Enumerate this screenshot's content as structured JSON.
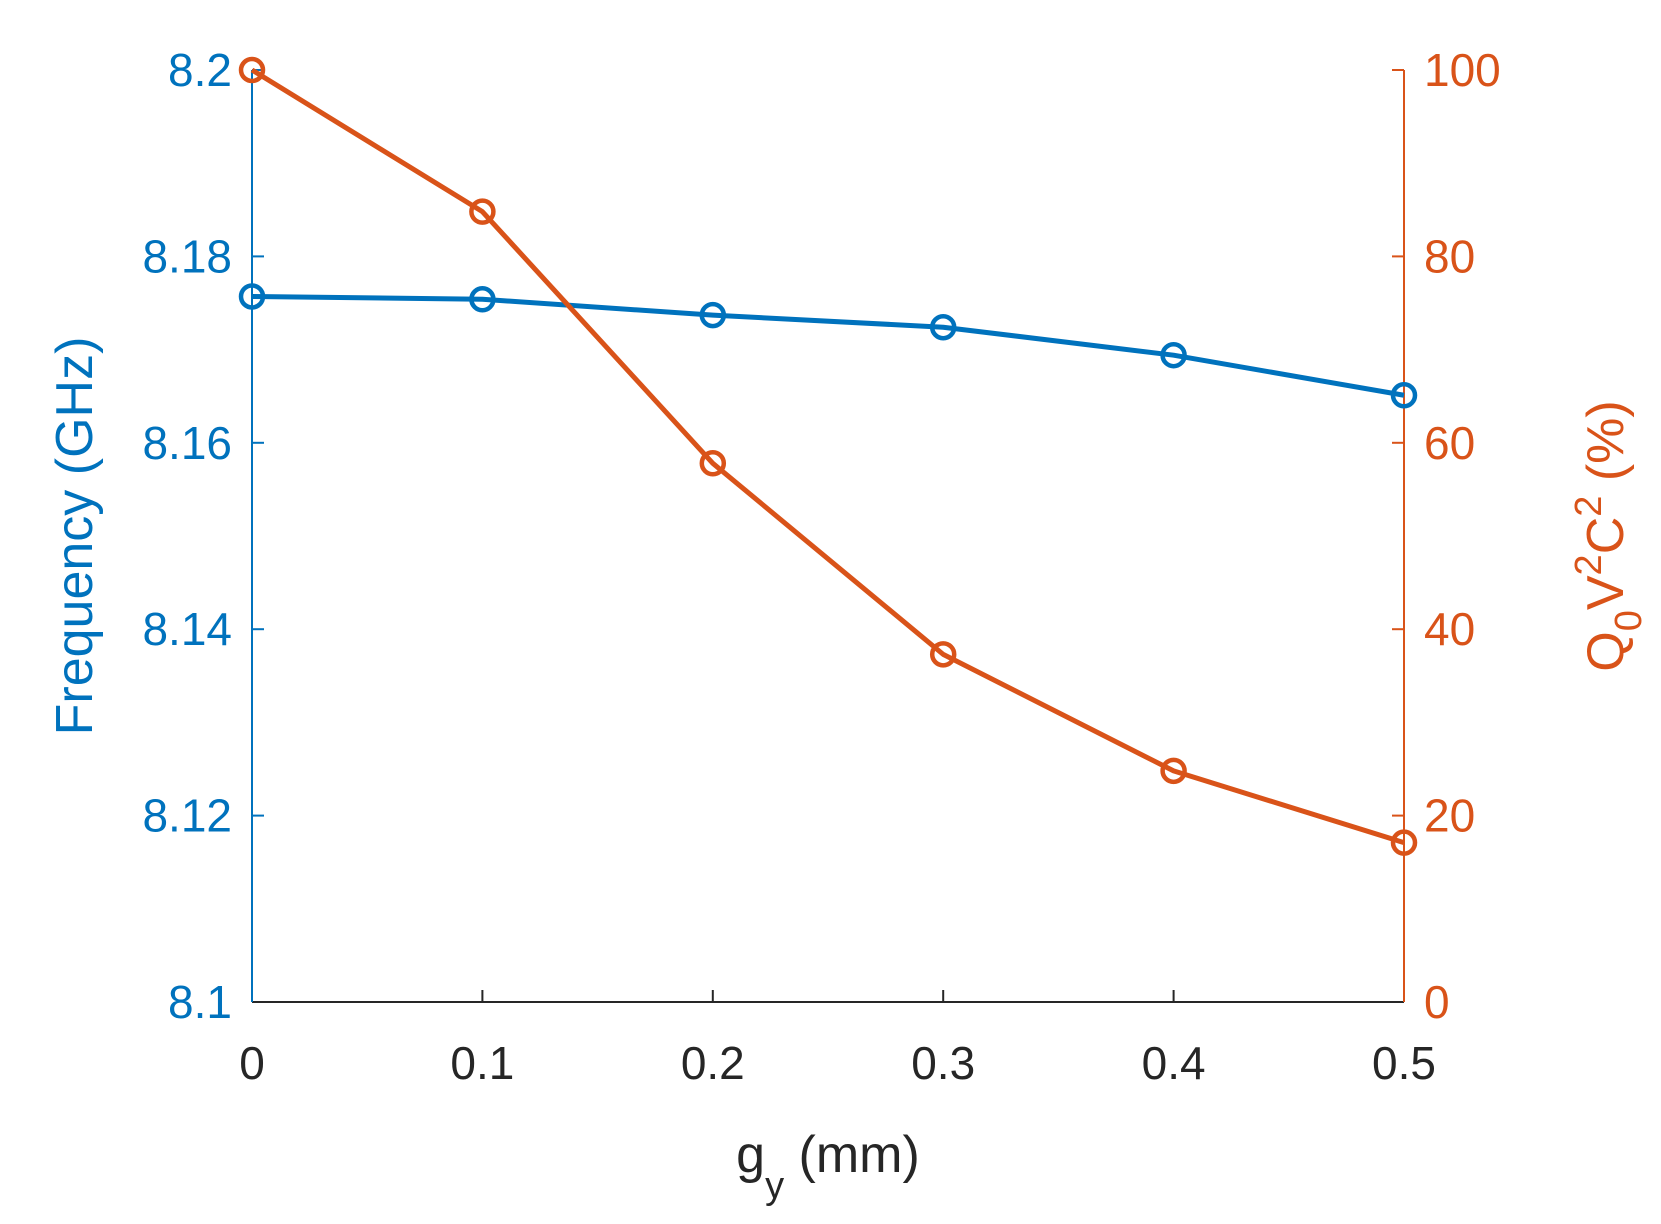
{
  "chart_data": {
    "type": "line",
    "x": [
      0,
      0.1,
      0.2,
      0.3,
      0.4,
      0.5
    ],
    "x_tick_labels": [
      "0",
      "0.1",
      "0.2",
      "0.3",
      "0.4",
      "0.5"
    ],
    "xlim": [
      0,
      0.5
    ],
    "xlabel": {
      "base": "g",
      "sub": "y",
      "rest": " (mm)"
    },
    "left_axis": {
      "ylim": [
        8.1,
        8.2
      ],
      "ticks": [
        8.1,
        8.12,
        8.14,
        8.16,
        8.18,
        8.2
      ],
      "tick_labels": [
        "8.1",
        "8.12",
        "8.14",
        "8.16",
        "8.18",
        "8.2"
      ],
      "ylabel": "Frequency (GHz)",
      "color": "#0072BD"
    },
    "right_axis": {
      "ylim": [
        0,
        100
      ],
      "ticks": [
        0,
        20,
        40,
        60,
        80,
        100
      ],
      "tick_labels": [
        "0",
        "20",
        "40",
        "60",
        "80",
        "100"
      ],
      "ylabel": {
        "q": "Q",
        "q_sub": "0",
        "v": "V",
        "v_sup": "2",
        "c": "C",
        "c_sup": "2",
        "rest": " (%)"
      },
      "color": "#D95319"
    },
    "series": [
      {
        "name": "Frequency",
        "axis": "left",
        "color": "#0072BD",
        "marker": "circle",
        "values": [
          8.1757,
          8.1754,
          8.1737,
          8.1724,
          8.1694,
          8.1651
        ]
      },
      {
        "name": "Q0V2C2",
        "axis": "right",
        "color": "#D95319",
        "marker": "circle",
        "values": [
          100,
          84.8,
          57.8,
          37.3,
          24.8,
          17.1
        ]
      }
    ],
    "axis_color": "#262626"
  }
}
